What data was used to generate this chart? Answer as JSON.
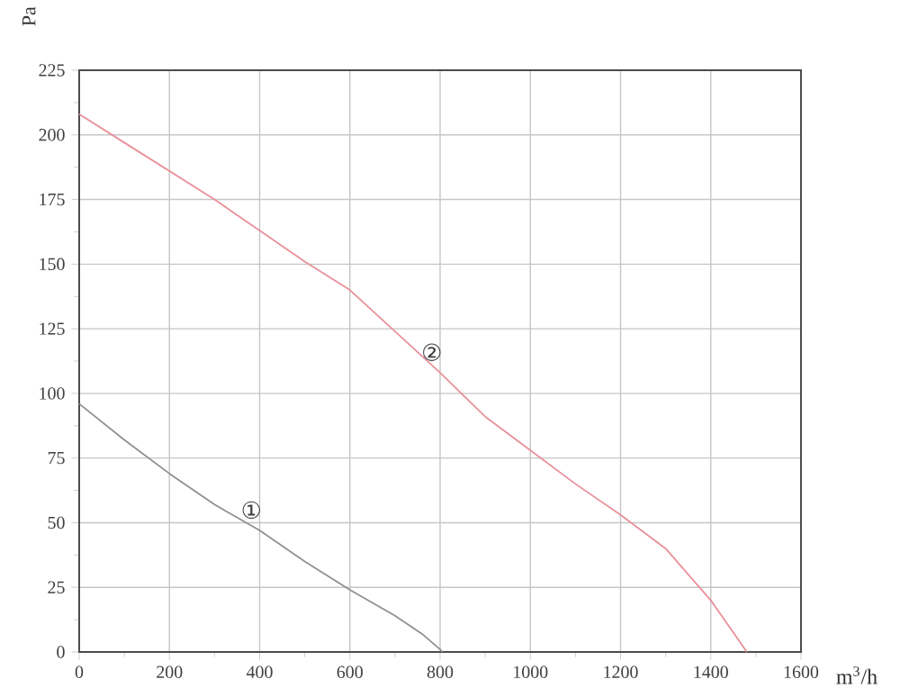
{
  "chart_data": {
    "type": "line",
    "xlabel": "m$^{3}$/h",
    "ylabel": "Pa",
    "xlim": [
      0,
      1600
    ],
    "xticks": [
      0,
      200,
      400,
      600,
      800,
      1000,
      1200,
      1400,
      1600
    ],
    "ylim": [
      0,
      225
    ],
    "yticks": [
      0,
      25,
      50,
      75,
      100,
      125,
      150,
      175,
      200,
      225
    ],
    "grid": true,
    "marker": "none",
    "line_style": "solid",
    "series": [
      {
        "name": "①",
        "color": "#909090",
        "x": [
          0,
          100,
          200,
          300,
          400,
          500,
          600,
          700,
          760,
          800,
          805
        ],
        "values": [
          96,
          82,
          69,
          57,
          47,
          35,
          24,
          14,
          7,
          1,
          0
        ]
      },
      {
        "name": "②",
        "color": "#e8909a",
        "x": [
          0,
          100,
          200,
          300,
          400,
          500,
          600,
          700,
          800,
          900,
          1000,
          1100,
          1200,
          1300,
          1400,
          1480
        ],
        "values": [
          208,
          197,
          186,
          175,
          163,
          151,
          140,
          124,
          108,
          91,
          78,
          65,
          53,
          40,
          20,
          0
        ]
      }
    ]
  }
}
